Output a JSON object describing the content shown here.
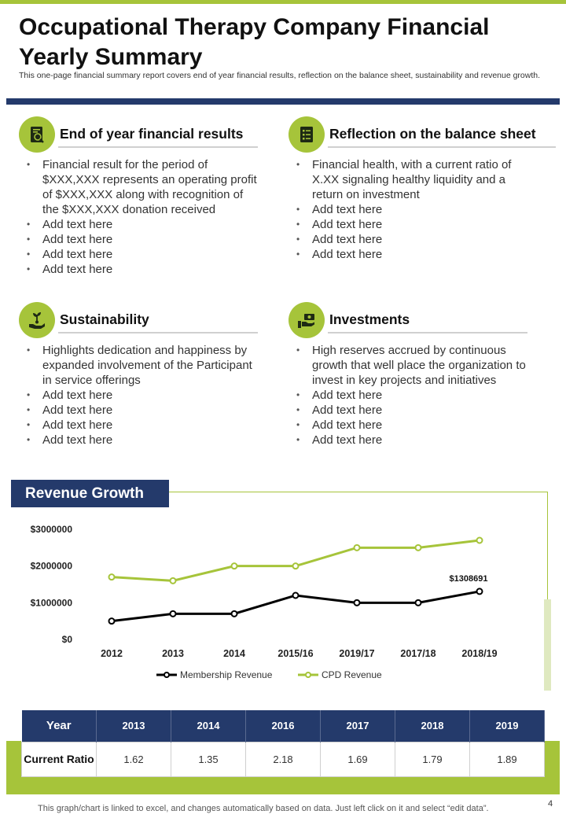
{
  "header": {
    "title": "Occupational Therapy Company Financial Yearly Summary",
    "subtitle": "This one-page financial summary report covers end of year financial results, reflection on the balance sheet, sustainability and revenue growth."
  },
  "sections": [
    {
      "title": "End of year financial results",
      "icon": "financial-report-icon",
      "bullets": [
        "Financial result for the period of $XXX,XXX represents an operating profit of $XXX,XXX along with recognition of the $XXX,XXX donation received",
        "Add text here",
        "Add text here",
        "Add text here",
        "Add text here"
      ]
    },
    {
      "title": "Reflection on the balance sheet",
      "icon": "checklist-icon",
      "bullets": [
        "Financial health, with a current ratio of X.XX signaling healthy liquidity and a return on investment",
        "Add text here",
        "Add text here",
        "Add text here",
        "Add text here"
      ]
    },
    {
      "title": "Sustainability",
      "icon": "hand-plant-icon",
      "bullets": [
        "Highlights dedication and happiness by expanded involvement of the Participant in service offerings",
        "Add text here",
        "Add text here",
        "Add text here",
        "Add text here"
      ]
    },
    {
      "title": "Investments",
      "icon": "hand-money-icon",
      "bullets": [
        "High reserves accrued by continuous growth that well place the organization to invest in key projects and initiatives",
        "Add text here",
        "Add text here",
        "Add text here",
        "Add text here"
      ]
    }
  ],
  "revenue": {
    "heading": "Revenue Growth"
  },
  "chart_data": {
    "type": "line",
    "categories": [
      "2012",
      "2013",
      "2014",
      "2015/16",
      "2019/17",
      "2017/18",
      "2018/19"
    ],
    "y_ticks": [
      "$0",
      "$1000000",
      "$2000000",
      "$3000000"
    ],
    "ylim": [
      0,
      3000000
    ],
    "grid": false,
    "legend_position": "bottom",
    "series": [
      {
        "name": "Membership Revenue",
        "color": "#000000",
        "values": [
          500000,
          700000,
          700000,
          1200000,
          1000000,
          1000000,
          1308691
        ]
      },
      {
        "name": "CPD Revenue",
        "color": "#a6c43a",
        "values": [
          1700000,
          1600000,
          2000000,
          2000000,
          2500000,
          2500000,
          2700000
        ]
      }
    ],
    "annotations": [
      {
        "text": "$1308691",
        "series": 0,
        "index": 6
      }
    ]
  },
  "ratio_table": {
    "header": "Year",
    "row_label": "Current Ratio",
    "years": [
      "2013",
      "2014",
      "2016",
      "2017",
      "2018",
      "2019"
    ],
    "values": [
      "1.62",
      "1.35",
      "2.18",
      "1.69",
      "1.79",
      "1.89"
    ]
  },
  "colors": {
    "accent": "#a6c43a",
    "navy": "#243a6b"
  },
  "footer": {
    "note": "This graph/chart is linked to excel, and changes automatically based on data. Just left click on it and select “edit data”.",
    "page_number": "4"
  }
}
